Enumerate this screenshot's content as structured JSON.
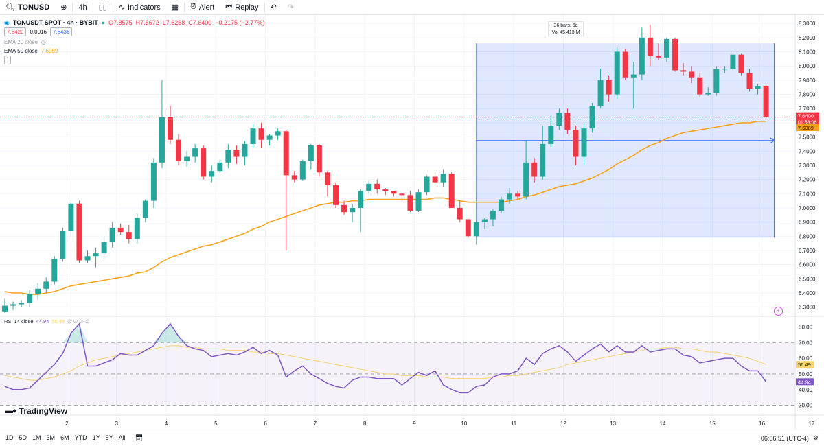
{
  "toolbar": {
    "symbol": "TONUSD",
    "interval": "4h",
    "indicators_label": "Indicators",
    "alert_label": "Alert",
    "replay_label": "Replay"
  },
  "legend": {
    "title": "TONUSDT SPOT · 4h · BYBIT",
    "ohlc": {
      "o": "O7.8575",
      "h": "H7.8672",
      "l": "L7.6268",
      "c": "C7.6400",
      "chg": "−0.2175 (−2.77%)"
    },
    "bid": "7.6420",
    "spread": "0.0016",
    "ask": "7.6436",
    "ema20": "EMA 20 close",
    "ema50": "EMA 50 close",
    "ema50_value": "7.6089"
  },
  "measure": {
    "line1": "36 bars, 6d",
    "line2": "Vol 45.413 M"
  },
  "price_tags": {
    "last": "7.6400",
    "countdown": "01:53:08",
    "ema": "7.6089"
  },
  "rsi": {
    "label": "RSI 14 close",
    "value": "44.94",
    "ma_value": "56.49"
  },
  "brand": "TradingView",
  "bottombar": {
    "ranges": [
      "1D",
      "5D",
      "1M",
      "3M",
      "6M",
      "YTD",
      "1Y",
      "5Y",
      "All"
    ],
    "time": "06:06:51 (UTC-4)"
  },
  "colors": {
    "up": "#26a69a",
    "down": "#f23645",
    "ema": "#f7a21b",
    "rsi": "#7e57c2",
    "rsi_ma": "#f6d26e",
    "zone": "#2962ff"
  },
  "chart_data": {
    "type": "candlestick",
    "timeframe": "4h",
    "x_ticks": [
      "2",
      "3",
      "4",
      "5",
      "6",
      "7",
      "8",
      "9",
      "10",
      "11",
      "12",
      "13",
      "14",
      "15",
      "16",
      "17"
    ],
    "y_ticks": [
      "6.3000",
      "6.4000",
      "6.5000",
      "6.6000",
      "6.7000",
      "6.8000",
      "6.9000",
      "7.0000",
      "7.1000",
      "7.2000",
      "7.3000",
      "7.4000",
      "7.5000",
      "7.6000",
      "7.7000",
      "7.8000",
      "7.9000",
      "8.0000",
      "8.1000",
      "8.2000",
      "8.3000"
    ],
    "ylim": [
      6.25,
      8.33
    ],
    "candles": [
      [
        6.27,
        6.36,
        6.26,
        6.31
      ],
      [
        6.31,
        6.34,
        6.28,
        6.32
      ],
      [
        6.32,
        6.35,
        6.3,
        6.33
      ],
      [
        6.33,
        6.42,
        6.3,
        6.39
      ],
      [
        6.39,
        6.47,
        6.35,
        6.43
      ],
      [
        6.43,
        6.51,
        6.4,
        6.48
      ],
      [
        6.48,
        6.66,
        6.46,
        6.64
      ],
      [
        6.64,
        6.86,
        6.62,
        6.84
      ],
      [
        6.84,
        7.06,
        6.8,
        7.03
      ],
      [
        7.03,
        7.05,
        6.61,
        6.63
      ],
      [
        6.63,
        6.7,
        6.61,
        6.66
      ],
      [
        6.66,
        6.72,
        6.58,
        6.68
      ],
      [
        6.68,
        6.8,
        6.64,
        6.76
      ],
      [
        6.76,
        6.9,
        6.72,
        6.86
      ],
      [
        6.86,
        6.89,
        6.81,
        6.83
      ],
      [
        6.83,
        6.88,
        6.75,
        6.78
      ],
      [
        6.78,
        6.96,
        6.75,
        6.93
      ],
      [
        6.93,
        7.06,
        6.9,
        7.05
      ],
      [
        7.05,
        7.35,
        7.0,
        7.32
      ],
      [
        7.32,
        7.9,
        7.28,
        7.64
      ],
      [
        7.64,
        7.72,
        7.45,
        7.48
      ],
      [
        7.48,
        7.52,
        7.3,
        7.33
      ],
      [
        7.33,
        7.4,
        7.29,
        7.36
      ],
      [
        7.36,
        7.45,
        7.32,
        7.42
      ],
      [
        7.42,
        7.44,
        7.2,
        7.22
      ],
      [
        7.22,
        7.3,
        7.18,
        7.26
      ],
      [
        7.26,
        7.34,
        7.25,
        7.32
      ],
      [
        7.32,
        7.45,
        7.28,
        7.41
      ],
      [
        7.41,
        7.44,
        7.31,
        7.36
      ],
      [
        7.36,
        7.47,
        7.3,
        7.45
      ],
      [
        7.45,
        7.59,
        7.42,
        7.56
      ],
      [
        7.56,
        7.6,
        7.42,
        7.48
      ],
      [
        7.48,
        7.52,
        7.44,
        7.51
      ],
      [
        7.51,
        7.56,
        7.48,
        7.54
      ],
      [
        7.54,
        7.55,
        6.7,
        7.23
      ],
      [
        7.23,
        7.26,
        7.18,
        7.2
      ],
      [
        7.2,
        7.34,
        7.19,
        7.33
      ],
      [
        7.33,
        7.45,
        7.27,
        7.44
      ],
      [
        7.44,
        7.45,
        7.22,
        7.25
      ],
      [
        7.25,
        7.26,
        7.08,
        7.16
      ],
      [
        7.16,
        7.18,
        7.0,
        7.02
      ],
      [
        7.02,
        7.05,
        6.95,
        6.97
      ],
      [
        6.97,
        7.03,
        6.9,
        7.0
      ],
      [
        7.0,
        7.13,
        6.83,
        7.12
      ],
      [
        7.12,
        7.19,
        7.1,
        7.17
      ],
      [
        7.17,
        7.2,
        7.1,
        7.13
      ],
      [
        7.13,
        7.14,
        7.09,
        7.12
      ],
      [
        7.12,
        7.12,
        7.08,
        7.1
      ],
      [
        7.1,
        7.11,
        7.06,
        7.09
      ],
      [
        7.09,
        7.12,
        6.97,
        6.98
      ],
      [
        6.98,
        7.13,
        6.97,
        7.11
      ],
      [
        7.11,
        7.23,
        7.09,
        7.22
      ],
      [
        7.22,
        7.25,
        7.17,
        7.18
      ],
      [
        7.18,
        7.27,
        7.15,
        7.24
      ],
      [
        7.24,
        7.25,
        7.0,
        7.0
      ],
      [
        7.0,
        7.05,
        6.9,
        6.92
      ],
      [
        6.92,
        6.92,
        6.79,
        6.8
      ],
      [
        6.8,
        6.91,
        6.74,
        6.9
      ],
      [
        6.9,
        6.93,
        6.85,
        6.92
      ],
      [
        6.92,
        6.99,
        6.87,
        6.98
      ],
      [
        6.98,
        7.08,
        6.96,
        7.06
      ],
      [
        7.06,
        7.14,
        7.03,
        7.1
      ],
      [
        7.1,
        7.12,
        7.06,
        7.08
      ],
      [
        7.08,
        7.48,
        7.06,
        7.32
      ],
      [
        7.32,
        7.35,
        7.18,
        7.22
      ],
      [
        7.22,
        7.58,
        7.2,
        7.45
      ],
      [
        7.45,
        7.65,
        7.43,
        7.58
      ],
      [
        7.58,
        7.7,
        7.55,
        7.67
      ],
      [
        7.67,
        7.7,
        7.52,
        7.55
      ],
      [
        7.55,
        7.58,
        7.3,
        7.36
      ],
      [
        7.36,
        7.59,
        7.31,
        7.56
      ],
      [
        7.56,
        7.74,
        7.53,
        7.72
      ],
      [
        7.72,
        7.98,
        7.7,
        7.9
      ],
      [
        7.9,
        7.93,
        7.75,
        7.8
      ],
      [
        7.8,
        8.13,
        7.77,
        8.1
      ],
      [
        8.1,
        8.12,
        7.9,
        7.92
      ],
      [
        7.92,
        8.03,
        7.7,
        7.94
      ],
      [
        7.94,
        8.27,
        7.9,
        8.2
      ],
      [
        8.2,
        8.29,
        8.0,
        8.07
      ],
      [
        8.07,
        8.16,
        8.04,
        8.06
      ],
      [
        8.06,
        8.2,
        8.03,
        8.19
      ],
      [
        8.19,
        8.2,
        7.96,
        7.97
      ],
      [
        7.97,
        8.02,
        7.93,
        7.96
      ],
      [
        7.96,
        8.0,
        7.88,
        7.92
      ],
      [
        7.92,
        7.95,
        7.78,
        7.8
      ],
      [
        7.8,
        7.85,
        7.79,
        7.81
      ],
      [
        7.81,
        8.0,
        7.79,
        7.98
      ],
      [
        7.98,
        8.0,
        7.95,
        7.98
      ],
      [
        7.98,
        8.09,
        7.97,
        8.08
      ],
      [
        8.08,
        8.09,
        7.93,
        7.95
      ],
      [
        7.95,
        7.98,
        7.82,
        7.84
      ],
      [
        7.84,
        7.87,
        7.8,
        7.86
      ],
      [
        7.86,
        7.87,
        7.63,
        7.64
      ]
    ],
    "ema50": [
      6.41,
      6.4,
      6.4,
      6.39,
      6.39,
      6.4,
      6.41,
      6.43,
      6.45,
      6.46,
      6.47,
      6.48,
      6.49,
      6.5,
      6.51,
      6.52,
      6.54,
      6.55,
      6.58,
      6.62,
      6.65,
      6.67,
      6.69,
      6.71,
      6.73,
      6.74,
      6.76,
      6.78,
      6.8,
      6.82,
      6.85,
      6.87,
      6.9,
      6.92,
      6.94,
      6.96,
      6.98,
      7.0,
      7.02,
      7.03,
      7.04,
      7.04,
      7.05,
      7.05,
      7.06,
      7.06,
      7.06,
      7.06,
      7.06,
      7.06,
      7.06,
      7.06,
      7.07,
      7.07,
      7.06,
      7.05,
      7.04,
      7.04,
      7.04,
      7.04,
      7.04,
      7.05,
      7.06,
      7.08,
      7.09,
      7.11,
      7.13,
      7.15,
      7.16,
      7.17,
      7.19,
      7.21,
      7.24,
      7.27,
      7.31,
      7.34,
      7.37,
      7.41,
      7.44,
      7.46,
      7.49,
      7.51,
      7.53,
      7.54,
      7.55,
      7.56,
      7.57,
      7.58,
      7.59,
      7.6,
      7.6,
      7.61,
      7.61
    ],
    "measure_zone": {
      "from_bar": 57,
      "to_bar": 93,
      "low": 6.79,
      "high": 8.16,
      "bars": "36 bars, 6d",
      "volume": "Vol 45.413 M"
    },
    "rsi": {
      "ylim": [
        25,
        85
      ],
      "levels": [
        70,
        50,
        30
      ],
      "y_ticks": [
        "30.00",
        "40.00",
        "50.00",
        "60.00",
        "70.00",
        "80.00"
      ],
      "values": [
        42,
        40,
        40,
        41,
        46,
        51,
        56,
        63,
        76,
        82,
        55,
        55,
        57,
        59,
        63,
        62,
        62,
        65,
        68,
        76,
        82,
        74,
        68,
        66,
        65,
        61,
        62,
        63,
        62,
        64,
        67,
        63,
        65,
        62,
        48,
        52,
        55,
        50,
        47,
        44,
        42,
        41,
        46,
        48,
        48,
        47,
        47,
        47,
        43,
        47,
        51,
        49,
        52,
        43,
        40,
        38,
        38,
        42,
        43,
        48,
        50,
        50,
        52,
        60,
        56,
        63,
        66,
        68,
        64,
        58,
        62,
        66,
        69,
        64,
        68,
        64,
        64,
        68,
        64,
        65,
        66,
        66,
        62,
        61,
        57,
        58,
        59,
        60,
        60,
        55,
        52,
        52,
        45
      ],
      "ma": [
        49,
        48,
        47,
        46,
        46,
        47,
        48,
        50,
        52,
        55,
        57,
        59,
        60,
        61,
        62,
        63,
        64,
        65,
        66,
        67,
        68,
        68,
        67,
        67,
        66,
        66,
        66,
        65,
        65,
        65,
        64,
        64,
        63,
        63,
        62,
        61,
        60,
        59,
        58,
        57,
        56,
        55,
        54,
        53,
        52,
        51,
        50,
        50,
        49,
        49,
        49,
        48,
        48,
        48,
        47,
        47,
        47,
        47,
        47,
        48,
        48,
        49,
        49,
        50,
        51,
        52,
        53,
        54,
        56,
        57,
        58,
        59,
        60,
        61,
        62,
        63,
        64,
        65,
        66,
        66,
        67,
        67,
        66,
        66,
        65,
        64,
        64,
        63,
        62,
        61,
        60,
        58,
        56
      ]
    }
  }
}
